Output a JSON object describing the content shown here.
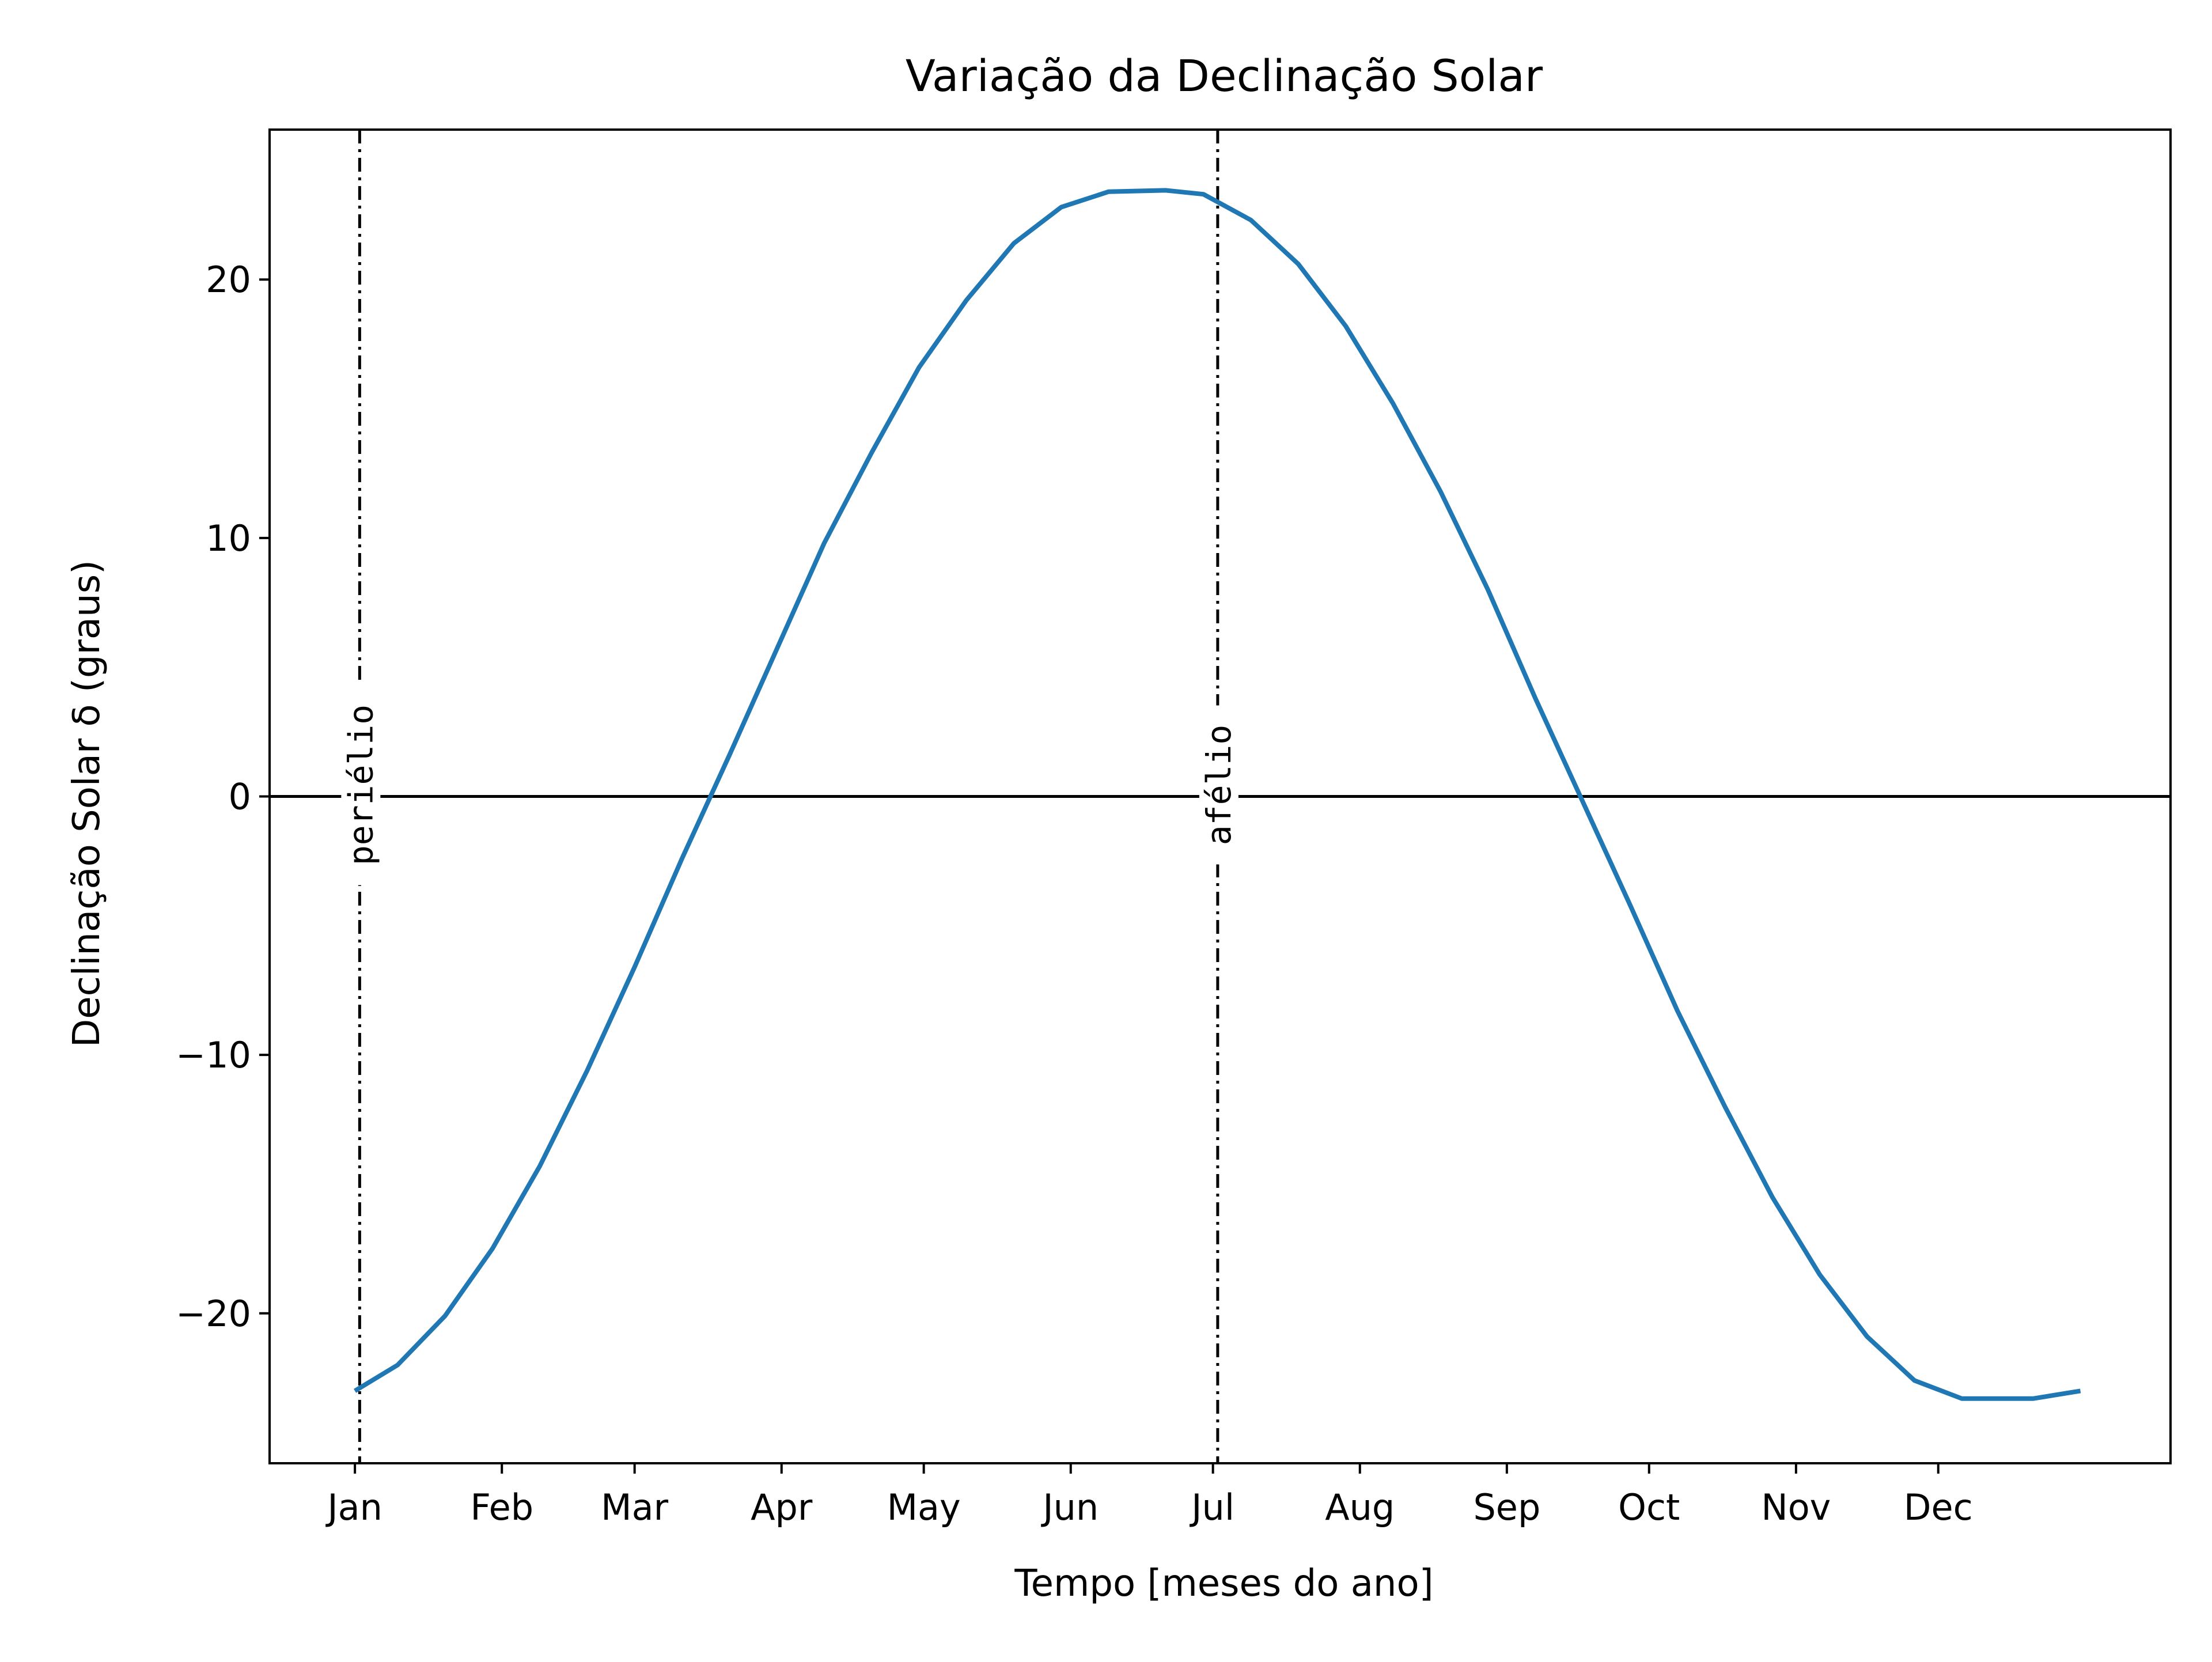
{
  "chart_data": {
    "type": "line",
    "title": "Variação da Declinação Solar",
    "xlabel": "Tempo [meses do ano]",
    "ylabel": "Declinação Solar δ (graus)",
    "xlim": [
      -17,
      384
    ],
    "ylim": [
      -25.8,
      25.8
    ],
    "x_ticks": [
      {
        "value": 1,
        "label": "Jan"
      },
      {
        "value": 32,
        "label": "Feb"
      },
      {
        "value": 60,
        "label": "Mar"
      },
      {
        "value": 91,
        "label": "Apr"
      },
      {
        "value": 121,
        "label": "May"
      },
      {
        "value": 152,
        "label": "Jun"
      },
      {
        "value": 182,
        "label": "Jul"
      },
      {
        "value": 213,
        "label": "Aug"
      },
      {
        "value": 244,
        "label": "Sep"
      },
      {
        "value": 274,
        "label": "Oct"
      },
      {
        "value": 305,
        "label": "Nov"
      },
      {
        "value": 335,
        "label": "Dec"
      }
    ],
    "y_ticks": [
      {
        "value": -20,
        "label": "−20"
      },
      {
        "value": -10,
        "label": "−10"
      },
      {
        "value": 0,
        "label": "0"
      },
      {
        "value": 10,
        "label": "10"
      },
      {
        "value": 20,
        "label": "20"
      }
    ],
    "series": [
      {
        "color": "#1f77b4",
        "x": [
          1,
          10,
          20,
          30,
          40,
          50,
          60,
          70,
          80,
          90,
          100,
          110,
          120,
          130,
          140,
          150,
          160,
          172,
          180,
          190,
          200,
          210,
          220,
          230,
          240,
          250,
          260,
          270,
          280,
          290,
          300,
          310,
          320,
          330,
          340,
          355,
          365
        ],
        "y": [
          -23.0,
          -22.0,
          -20.1,
          -17.5,
          -14.3,
          -10.6,
          -6.6,
          -2.4,
          1.6,
          5.7,
          9.8,
          13.3,
          16.6,
          19.2,
          21.4,
          22.8,
          23.4,
          23.45,
          23.3,
          22.3,
          20.6,
          18.2,
          15.2,
          11.8,
          8.0,
          3.8,
          -0.2,
          -4.2,
          -8.3,
          -12.0,
          -15.5,
          -18.5,
          -20.9,
          -22.6,
          -23.3,
          -23.3,
          -23.0
        ]
      }
    ],
    "reference_lines": [
      {
        "orientation": "horizontal",
        "value": 0,
        "style": "solid",
        "color": "#000000"
      },
      {
        "orientation": "vertical",
        "value": 2,
        "style": "dashdot",
        "color": "#000000",
        "label": "periélio"
      },
      {
        "orientation": "vertical",
        "value": 183,
        "style": "dashdot",
        "color": "#000000",
        "label": "afélio"
      }
    ],
    "grid": false,
    "legend": "none"
  }
}
